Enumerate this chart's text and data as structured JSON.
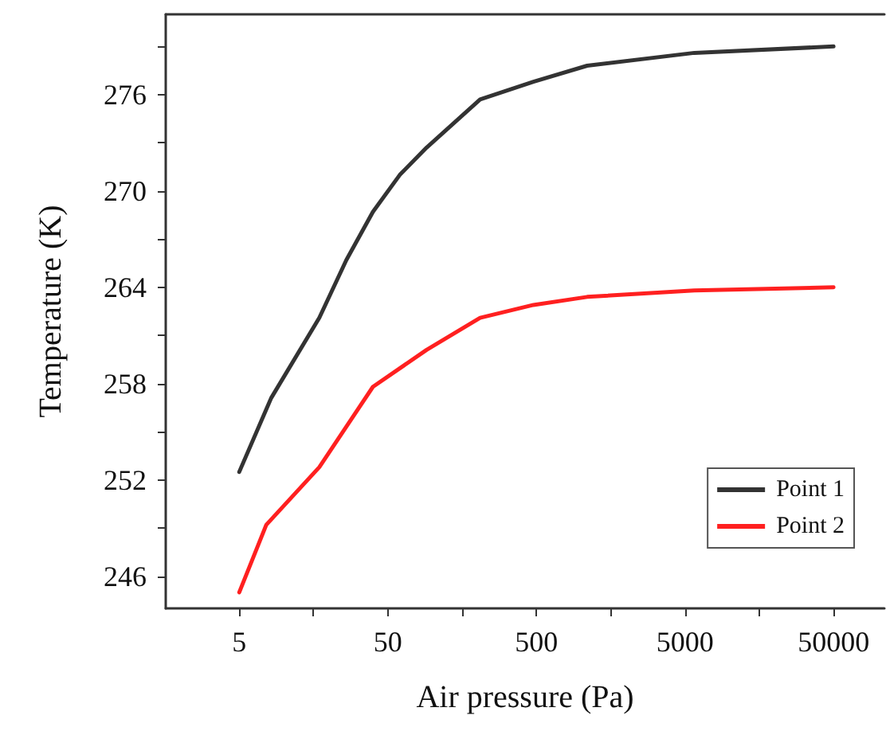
{
  "chart_data": {
    "type": "line",
    "xlabel": "Air pressure (Pa)",
    "ylabel": "Temperature (K)",
    "log": "x",
    "xlim": [
      1.6,
      110000
    ],
    "xticks": [
      5,
      {
        "value": 15.8,
        "label": null
      },
      50,
      {
        "value": 158,
        "label": null
      },
      500,
      {
        "value": 1580,
        "label": null
      },
      5000,
      {
        "value": 15800,
        "label": null
      },
      50000
    ],
    "ylim": [
      244,
      281
    ],
    "yticks": [
      246,
      {
        "value": 249,
        "label": null
      },
      252,
      {
        "value": 255,
        "label": null
      },
      258,
      {
        "value": 261,
        "label": null
      },
      264,
      {
        "value": 267,
        "label": null
      },
      270,
      {
        "value": 273,
        "label": null
      },
      276,
      {
        "value": 279,
        "label": null
      }
    ],
    "grid": false,
    "legend": "bottom right",
    "marker": "none",
    "line_style": "solid",
    "series": [
      {
        "name": "Point 1",
        "color": "#333333",
        "x": [
          5,
          8.2,
          17.3,
          26.3,
          39.7,
          60.2,
          91.2,
          209,
          478,
          1098,
          5780,
          50000
        ],
        "values": [
          252.5,
          257.1,
          262.1,
          265.7,
          268.7,
          271.0,
          272.7,
          275.7,
          276.8,
          277.8,
          278.6,
          279.0
        ]
      },
      {
        "name": "Point 2",
        "color": "#ff2020",
        "x": [
          5,
          7.6,
          17.3,
          39.7,
          91.2,
          209,
          478,
          1098,
          5780,
          50000
        ],
        "values": [
          245.0,
          249.2,
          252.8,
          257.8,
          260.1,
          262.1,
          262.9,
          263.4,
          263.8,
          264.0
        ]
      }
    ]
  }
}
